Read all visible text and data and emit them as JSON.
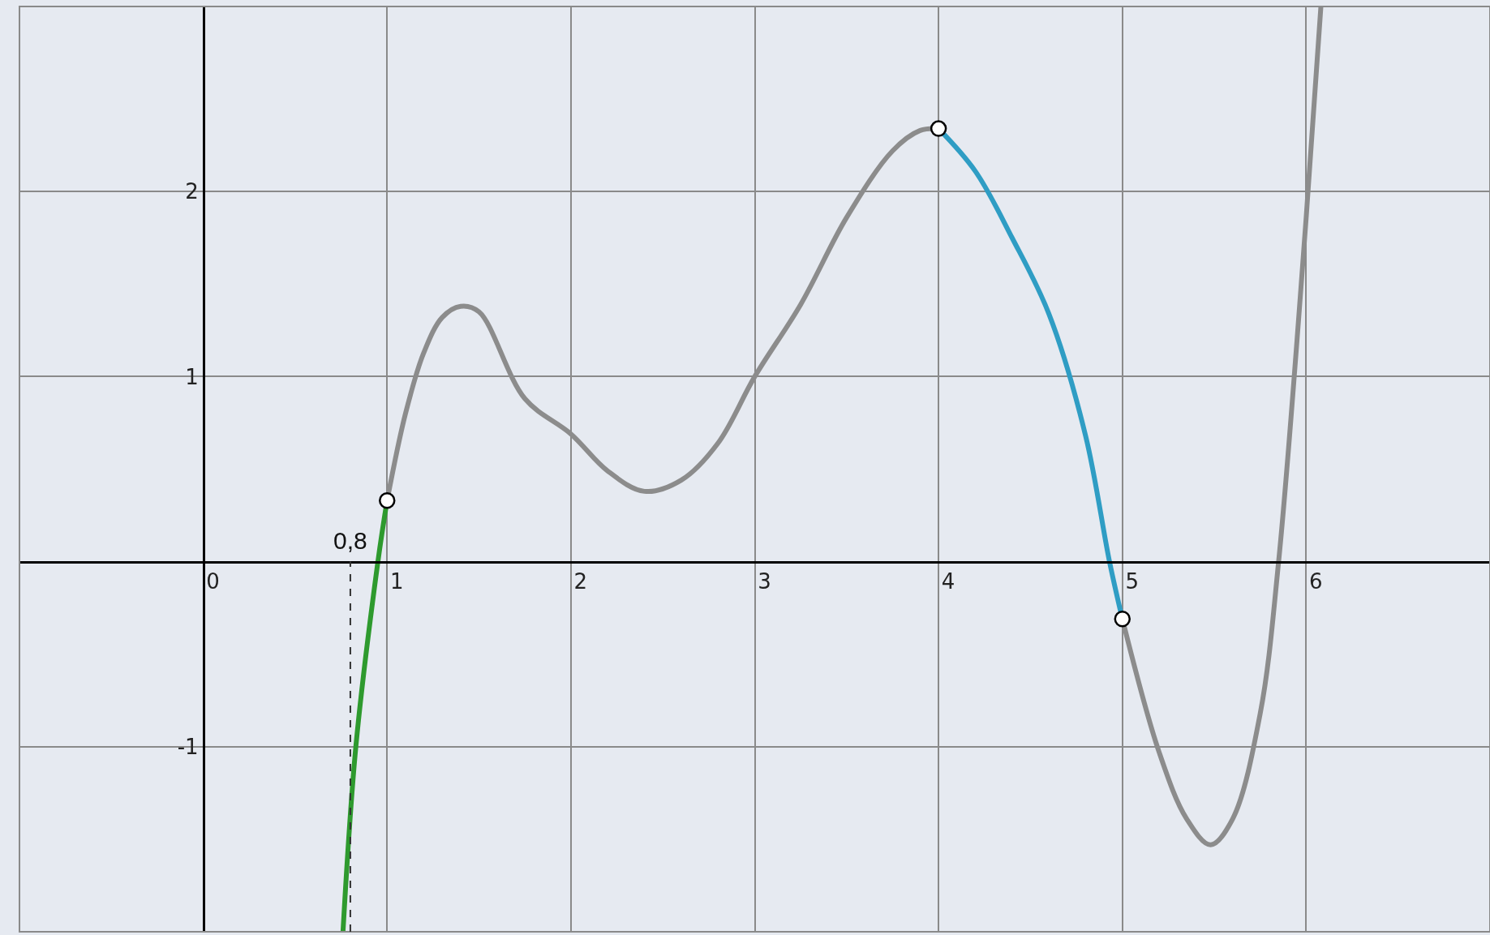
{
  "chart_data": {
    "type": "line",
    "xlim": [
      -1,
      7
    ],
    "ylim": [
      -2,
      3
    ],
    "xticks": [
      0,
      1,
      2,
      3,
      4,
      5,
      6
    ],
    "yticks": [
      {
        "value": -2,
        "label": null
      },
      -1,
      1,
      2
    ],
    "grid": true,
    "line_style": "solid",
    "series": [
      {
        "color": "#8c8c8c",
        "marker": "none",
        "x": [
          1,
          1.1,
          1.2,
          1.3,
          1.4,
          1.5,
          1.75,
          2,
          2.2,
          2.4,
          2.6,
          2.8,
          3,
          3.25,
          3.5,
          3.75,
          3.9,
          4,
          4.5,
          5,
          5.2,
          5.35,
          5.48,
          5.6,
          5.75,
          5.85,
          6,
          6.08
        ],
        "values": [
          0.33,
          0.8,
          1.13,
          1.32,
          1.38,
          1.35,
          0.88,
          0.69,
          0.49,
          0.38,
          0.44,
          0.64,
          1.0,
          1.39,
          1.86,
          2.22,
          2.33,
          2.34,
          null,
          -0.31,
          -1.03,
          -1.39,
          -1.53,
          -1.39,
          -0.82,
          0,
          1.86,
          3
        ]
      },
      {
        "color": "#2e9a2e",
        "marker": "none",
        "x": [
          0.76,
          0.83,
          0.95,
          1
        ],
        "values": [
          -2,
          -1,
          0,
          0.33
        ]
      },
      {
        "color": "#2f9dc4",
        "marker": "none",
        "x": [
          4,
          4.2,
          4.4,
          4.6,
          4.8,
          4.93,
          5
        ],
        "values": [
          2.34,
          2.11,
          1.75,
          1.34,
          0.68,
          0,
          -0.31
        ]
      },
      {
        "type": "scatter",
        "color": "#ffffff",
        "marker": "circle",
        "x": [
          1,
          4,
          5
        ],
        "values": [
          0.33,
          2.34,
          -0.31
        ]
      }
    ],
    "ref_lines": [
      {
        "axis": "x",
        "value": 0.8,
        "label": "0,8",
        "line_style": "dashed",
        "color": "#333333"
      }
    ]
  }
}
